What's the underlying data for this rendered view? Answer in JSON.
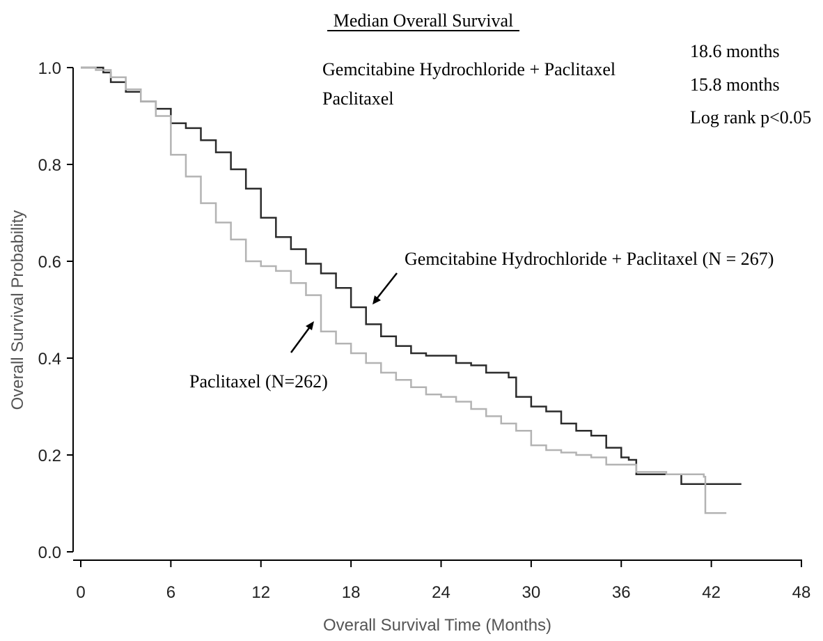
{
  "chart_data": {
    "type": "line",
    "title": "Median Overall Survival",
    "xlabel": "Overall Survival Time (Months)",
    "ylabel": "Overall Survival Probability",
    "xlim": [
      0,
      48
    ],
    "ylim": [
      0,
      1
    ],
    "x_ticks": [
      "0",
      "6",
      "12",
      "18",
      "24",
      "30",
      "36",
      "42",
      "48"
    ],
    "y_ticks": [
      "0.0",
      "0.2",
      "0.4",
      "0.6",
      "0.8",
      "1.0"
    ],
    "legend": {
      "labels": [
        "Gemcitabine Hydrochloride + Paclitaxel",
        "Paclitaxel"
      ],
      "values": [
        "18.6 months",
        "15.8 months"
      ],
      "stat": "Log rank p<0.05"
    },
    "annotations": [
      {
        "text": "Gemcitabine Hydrochloride + Paclitaxel (N = 267)",
        "series": 0
      },
      {
        "text": "Paclitaxel (N=262)",
        "series": 1
      }
    ],
    "series": [
      {
        "name": "Gemcitabine Hydrochloride + Paclitaxel",
        "color": "#2b2b2b",
        "points": [
          [
            0,
            1.0
          ],
          [
            1,
            1.0
          ],
          [
            1.5,
            0.99
          ],
          [
            2,
            0.97
          ],
          [
            3,
            0.95
          ],
          [
            4,
            0.93
          ],
          [
            5,
            0.915
          ],
          [
            6,
            0.885
          ],
          [
            7,
            0.875
          ],
          [
            8,
            0.85
          ],
          [
            9,
            0.825
          ],
          [
            10,
            0.79
          ],
          [
            11,
            0.75
          ],
          [
            12,
            0.69
          ],
          [
            13,
            0.65
          ],
          [
            14,
            0.625
          ],
          [
            15,
            0.595
          ],
          [
            16,
            0.575
          ],
          [
            17,
            0.545
          ],
          [
            18,
            0.505
          ],
          [
            19,
            0.47
          ],
          [
            20,
            0.445
          ],
          [
            21,
            0.425
          ],
          [
            22,
            0.41
          ],
          [
            23,
            0.405
          ],
          [
            24,
            0.405
          ],
          [
            25,
            0.39
          ],
          [
            26,
            0.385
          ],
          [
            27,
            0.37
          ],
          [
            28,
            0.37
          ],
          [
            28.5,
            0.36
          ],
          [
            29,
            0.32
          ],
          [
            30,
            0.3
          ],
          [
            31,
            0.29
          ],
          [
            32,
            0.265
          ],
          [
            33,
            0.25
          ],
          [
            34,
            0.24
          ],
          [
            35,
            0.215
          ],
          [
            36,
            0.195
          ],
          [
            36.5,
            0.19
          ],
          [
            37,
            0.16
          ],
          [
            38,
            0.16
          ],
          [
            39,
            0.16
          ],
          [
            40,
            0.14
          ],
          [
            41,
            0.14
          ],
          [
            42,
            0.14
          ],
          [
            43,
            0.14
          ],
          [
            44,
            0.14
          ]
        ]
      },
      {
        "name": "Paclitaxel",
        "color": "#b3b3b3",
        "points": [
          [
            0,
            1.0
          ],
          [
            1,
            0.995
          ],
          [
            2,
            0.98
          ],
          [
            3,
            0.955
          ],
          [
            4,
            0.93
          ],
          [
            5,
            0.9
          ],
          [
            6,
            0.82
          ],
          [
            7,
            0.775
          ],
          [
            8,
            0.72
          ],
          [
            9,
            0.68
          ],
          [
            10,
            0.645
          ],
          [
            11,
            0.6
          ],
          [
            12,
            0.59
          ],
          [
            13,
            0.58
          ],
          [
            14,
            0.555
          ],
          [
            15,
            0.53
          ],
          [
            16,
            0.455
          ],
          [
            17,
            0.43
          ],
          [
            18,
            0.41
          ],
          [
            19,
            0.39
          ],
          [
            20,
            0.37
          ],
          [
            21,
            0.355
          ],
          [
            22,
            0.34
          ],
          [
            23,
            0.325
          ],
          [
            24,
            0.32
          ],
          [
            25,
            0.31
          ],
          [
            26,
            0.295
          ],
          [
            27,
            0.28
          ],
          [
            28,
            0.265
          ],
          [
            29,
            0.25
          ],
          [
            30,
            0.22
          ],
          [
            31,
            0.21
          ],
          [
            32,
            0.205
          ],
          [
            33,
            0.2
          ],
          [
            34,
            0.195
          ],
          [
            35,
            0.18
          ],
          [
            36,
            0.18
          ],
          [
            37,
            0.165
          ],
          [
            38,
            0.165
          ],
          [
            39,
            0.16
          ],
          [
            40,
            0.16
          ],
          [
            41,
            0.16
          ],
          [
            41.5,
            0.155
          ],
          [
            41.6,
            0.08
          ],
          [
            43,
            0.08
          ]
        ]
      }
    ]
  }
}
